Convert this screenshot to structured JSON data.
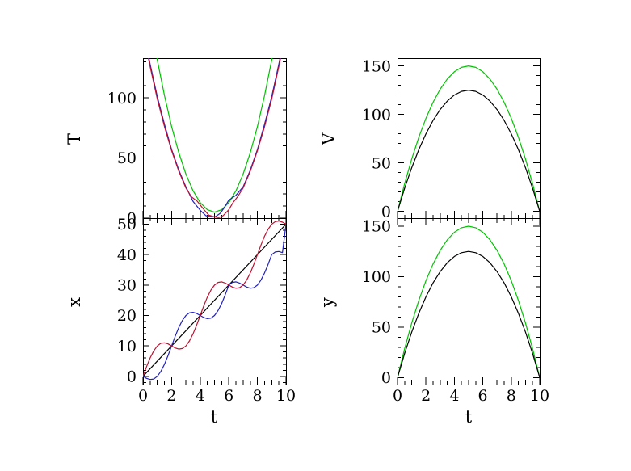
{
  "figure": {
    "background": "#ffffff",
    "frame_color": "#000000",
    "text_color": "#000000"
  },
  "chart_data": [
    {
      "id": "T-panel",
      "type": "line",
      "position": "top-left",
      "xlabel": "",
      "ylabel": "T",
      "xlim": [
        0,
        10
      ],
      "ylim": [
        0,
        133
      ],
      "xticks": {
        "minor": 0.5,
        "mid": 1,
        "major": 2,
        "labels": []
      },
      "yticks": {
        "minor": 10,
        "major": 50,
        "labels": [
          0,
          50,
          100
        ]
      },
      "series": [
        {
          "name": "green",
          "color": "#00c300",
          "points": [
            [
              0.5,
              164.9
            ],
            [
              1,
              131.4
            ],
            [
              1.5,
              101.8
            ],
            [
              2,
              76.1
            ],
            [
              2.5,
              54.4
            ],
            [
              3,
              36.6
            ],
            [
              3.5,
              22.8
            ],
            [
              4,
              12.9
            ],
            [
              4.5,
              7
            ],
            [
              5,
              5
            ],
            [
              5.5,
              7
            ],
            [
              6,
              12.9
            ],
            [
              6.5,
              22.8
            ],
            [
              7,
              36.6
            ],
            [
              7.5,
              54.4
            ],
            [
              8,
              76.1
            ],
            [
              8.5,
              101.8
            ],
            [
              9,
              131.4
            ],
            [
              9.5,
              164.9
            ]
          ]
        },
        {
          "name": "blue",
          "color": "#2020c0",
          "points": [
            [
              0,
              158
            ],
            [
              0.5,
              128
            ],
            [
              1,
              101
            ],
            [
              1.5,
              78
            ],
            [
              2,
              57
            ],
            [
              2.5,
              40
            ],
            [
              3,
              26
            ],
            [
              3.5,
              14
            ],
            [
              4,
              6.5
            ],
            [
              4.4,
              2
            ],
            [
              4.8,
              1
            ],
            [
              5.1,
              1.5
            ],
            [
              5.4,
              4
            ],
            [
              5.7,
              9
            ],
            [
              6,
              15
            ],
            [
              6.5,
              19
            ],
            [
              7,
              26
            ],
            [
              7.5,
              40
            ],
            [
              8,
              57
            ],
            [
              8.5,
              78
            ],
            [
              9,
              101
            ],
            [
              9.5,
              128
            ],
            [
              10,
              158
            ]
          ]
        },
        {
          "name": "red",
          "color": "#c01030",
          "points": [
            [
              0,
              155
            ],
            [
              0.5,
              126
            ],
            [
              1,
              99
            ],
            [
              1.5,
              76
            ],
            [
              2,
              56
            ],
            [
              2.5,
              39
            ],
            [
              3,
              25
            ],
            [
              3.4,
              17.5
            ],
            [
              3.8,
              14
            ],
            [
              4.2,
              8
            ],
            [
              4.6,
              2.5
            ],
            [
              5,
              1
            ],
            [
              5.3,
              0.5
            ],
            [
              5.6,
              2
            ],
            [
              6,
              7
            ],
            [
              6.3,
              13
            ],
            [
              6.6,
              17.5
            ],
            [
              7,
              25
            ],
            [
              7.5,
              39
            ],
            [
              8,
              56
            ],
            [
              8.5,
              76
            ],
            [
              9,
              99
            ],
            [
              9.5,
              126
            ],
            [
              10,
              155
            ]
          ]
        }
      ]
    },
    {
      "id": "x-panel",
      "type": "line",
      "position": "bottom-left",
      "xlabel": "t",
      "ylabel": "x",
      "xlim": [
        0,
        10
      ],
      "ylim": [
        -2.7,
        52
      ],
      "xticks": {
        "minor": 0.5,
        "mid": 1,
        "major": 2,
        "labels": [
          0,
          2,
          4,
          6,
          8,
          10
        ]
      },
      "yticks": {
        "minor": 2,
        "major": 10,
        "labels": [
          0,
          10,
          20,
          30,
          40,
          50
        ]
      },
      "series": [
        {
          "name": "black",
          "color": "#000000",
          "points": [
            [
              0,
              0
            ],
            [
              10,
              50
            ]
          ]
        },
        {
          "name": "blue",
          "color": "#2020c0",
          "points": [
            [
              0,
              0
            ],
            [
              0.25,
              -0.66
            ],
            [
              0.5,
              -1.04
            ],
            [
              0.75,
              -0.87
            ],
            [
              1,
              0
            ],
            [
              1.25,
              1.63
            ],
            [
              1.5,
              3.96
            ],
            [
              1.75,
              6.84
            ],
            [
              2,
              10
            ],
            [
              2.25,
              13.16
            ],
            [
              2.5,
              16.04
            ],
            [
              2.75,
              18.37
            ],
            [
              3,
              20
            ],
            [
              3.25,
              20.87
            ],
            [
              3.5,
              21.04
            ],
            [
              3.75,
              20.66
            ],
            [
              4,
              20
            ],
            [
              4.25,
              19.34
            ],
            [
              4.5,
              18.96
            ],
            [
              4.75,
              19.13
            ],
            [
              5,
              20
            ],
            [
              5.25,
              21.63
            ],
            [
              5.5,
              23.96
            ],
            [
              5.75,
              26.84
            ],
            [
              6,
              30
            ],
            [
              6.25,
              30.87
            ],
            [
              6.5,
              31.04
            ],
            [
              6.75,
              30.66
            ],
            [
              7,
              30
            ],
            [
              7.25,
              29.34
            ],
            [
              7.5,
              28.96
            ],
            [
              7.75,
              29.13
            ],
            [
              8,
              30
            ],
            [
              8.25,
              31.63
            ],
            [
              8.5,
              33.96
            ],
            [
              8.75,
              36.84
            ],
            [
              9,
              40
            ],
            [
              9.25,
              40.87
            ],
            [
              9.5,
              41.04
            ],
            [
              9.75,
              40.66
            ],
            [
              10,
              50
            ]
          ]
        },
        {
          "name": "red",
          "color": "#c01030",
          "points": [
            [
              0,
              0
            ],
            [
              0.25,
              3.16
            ],
            [
              0.5,
              6.04
            ],
            [
              0.75,
              8.37
            ],
            [
              1,
              10
            ],
            [
              1.25,
              10.87
            ],
            [
              1.5,
              11.04
            ],
            [
              1.75,
              10.66
            ],
            [
              2,
              10
            ],
            [
              2.25,
              9.34
            ],
            [
              2.5,
              8.96
            ],
            [
              2.75,
              9.13
            ],
            [
              3,
              10
            ],
            [
              3.25,
              11.63
            ],
            [
              3.5,
              13.96
            ],
            [
              3.75,
              16.84
            ],
            [
              4,
              20
            ],
            [
              4.25,
              23.16
            ],
            [
              4.5,
              26.04
            ],
            [
              4.75,
              28.37
            ],
            [
              5,
              30
            ],
            [
              5.25,
              30.87
            ],
            [
              5.5,
              31.04
            ],
            [
              5.75,
              30.66
            ],
            [
              6,
              30
            ],
            [
              6.25,
              29.34
            ],
            [
              6.5,
              28.96
            ],
            [
              6.75,
              29.13
            ],
            [
              7,
              30
            ],
            [
              7.25,
              31.63
            ],
            [
              7.5,
              33.96
            ],
            [
              7.75,
              36.84
            ],
            [
              8,
              40
            ],
            [
              8.25,
              43.16
            ],
            [
              8.5,
              46.04
            ],
            [
              8.75,
              48.37
            ],
            [
              9,
              50
            ],
            [
              9.25,
              50.87
            ],
            [
              9.5,
              51.04
            ],
            [
              9.75,
              50.66
            ],
            [
              10,
              50
            ]
          ]
        }
      ]
    },
    {
      "id": "V-panel",
      "type": "line",
      "position": "top-right",
      "xlabel": "",
      "ylabel": "V",
      "xlim": [
        0,
        10
      ],
      "ylim": [
        -7,
        158
      ],
      "xticks": {
        "minor": 0.5,
        "mid": 1,
        "major": 2,
        "labels": []
      },
      "yticks": {
        "minor": 10,
        "major": 50,
        "labels": [
          0,
          50,
          100,
          150
        ]
      },
      "series": [
        {
          "name": "green",
          "color": "#00c300",
          "points": [
            [
              0,
              0
            ],
            [
              0.5,
              28.5
            ],
            [
              1,
              54
            ],
            [
              1.5,
              76.5
            ],
            [
              2,
              96
            ],
            [
              2.5,
              112.5
            ],
            [
              3,
              126
            ],
            [
              3.5,
              136.5
            ],
            [
              4,
              144
            ],
            [
              4.5,
              148.5
            ],
            [
              5,
              150
            ],
            [
              5.5,
              148.5
            ],
            [
              6,
              144
            ],
            [
              6.5,
              136.5
            ],
            [
              7,
              126
            ],
            [
              7.5,
              112.5
            ],
            [
              8,
              96
            ],
            [
              8.5,
              76.5
            ],
            [
              9,
              54
            ],
            [
              9.5,
              28.5
            ],
            [
              10,
              0
            ]
          ]
        },
        {
          "name": "black",
          "color": "#000000",
          "points": [
            [
              0,
              0
            ],
            [
              0.5,
              23.75
            ],
            [
              1,
              45
            ],
            [
              1.5,
              63.75
            ],
            [
              2,
              80
            ],
            [
              2.5,
              93.75
            ],
            [
              3,
              105
            ],
            [
              3.5,
              113.75
            ],
            [
              4,
              120
            ],
            [
              4.5,
              123.75
            ],
            [
              5,
              125
            ],
            [
              5.5,
              123.75
            ],
            [
              6,
              120
            ],
            [
              6.5,
              113.75
            ],
            [
              7,
              105
            ],
            [
              7.5,
              93.75
            ],
            [
              8,
              80
            ],
            [
              8.5,
              63.75
            ],
            [
              9,
              45
            ],
            [
              9.5,
              23.75
            ],
            [
              10,
              0
            ]
          ]
        }
      ]
    },
    {
      "id": "y-panel",
      "type": "line",
      "position": "bottom-right",
      "xlabel": "t",
      "ylabel": "y",
      "xlim": [
        0,
        10
      ],
      "ylim": [
        -7,
        158
      ],
      "xticks": {
        "minor": 0.5,
        "mid": 1,
        "major": 2,
        "labels": [
          0,
          2,
          4,
          6,
          8,
          10
        ]
      },
      "yticks": {
        "minor": 10,
        "major": 50,
        "labels": [
          0,
          50,
          100,
          150
        ]
      },
      "series": [
        {
          "name": "green",
          "color": "#00c300",
          "points": [
            [
              0,
              0
            ],
            [
              0.5,
              28.5
            ],
            [
              1,
              54
            ],
            [
              1.5,
              76.5
            ],
            [
              2,
              96
            ],
            [
              2.5,
              112.5
            ],
            [
              3,
              126
            ],
            [
              3.5,
              136.5
            ],
            [
              4,
              144
            ],
            [
              4.5,
              148.5
            ],
            [
              5,
              150
            ],
            [
              5.5,
              148.5
            ],
            [
              6,
              144
            ],
            [
              6.5,
              136.5
            ],
            [
              7,
              126
            ],
            [
              7.5,
              112.5
            ],
            [
              8,
              96
            ],
            [
              8.5,
              76.5
            ],
            [
              9,
              54
            ],
            [
              9.5,
              28.5
            ],
            [
              10,
              0
            ]
          ]
        },
        {
          "name": "black",
          "color": "#000000",
          "points": [
            [
              0,
              0
            ],
            [
              0.5,
              23.75
            ],
            [
              1,
              45
            ],
            [
              1.5,
              63.75
            ],
            [
              2,
              80
            ],
            [
              2.5,
              93.75
            ],
            [
              3,
              105
            ],
            [
              3.5,
              113.75
            ],
            [
              4,
              120
            ],
            [
              4.5,
              123.75
            ],
            [
              5,
              125
            ],
            [
              5.5,
              123.75
            ],
            [
              6,
              120
            ],
            [
              6.5,
              113.75
            ],
            [
              7,
              105
            ],
            [
              7.5,
              93.75
            ],
            [
              8,
              80
            ],
            [
              8.5,
              63.75
            ],
            [
              9,
              45
            ],
            [
              9.5,
              23.75
            ],
            [
              10,
              0
            ]
          ]
        }
      ]
    }
  ]
}
